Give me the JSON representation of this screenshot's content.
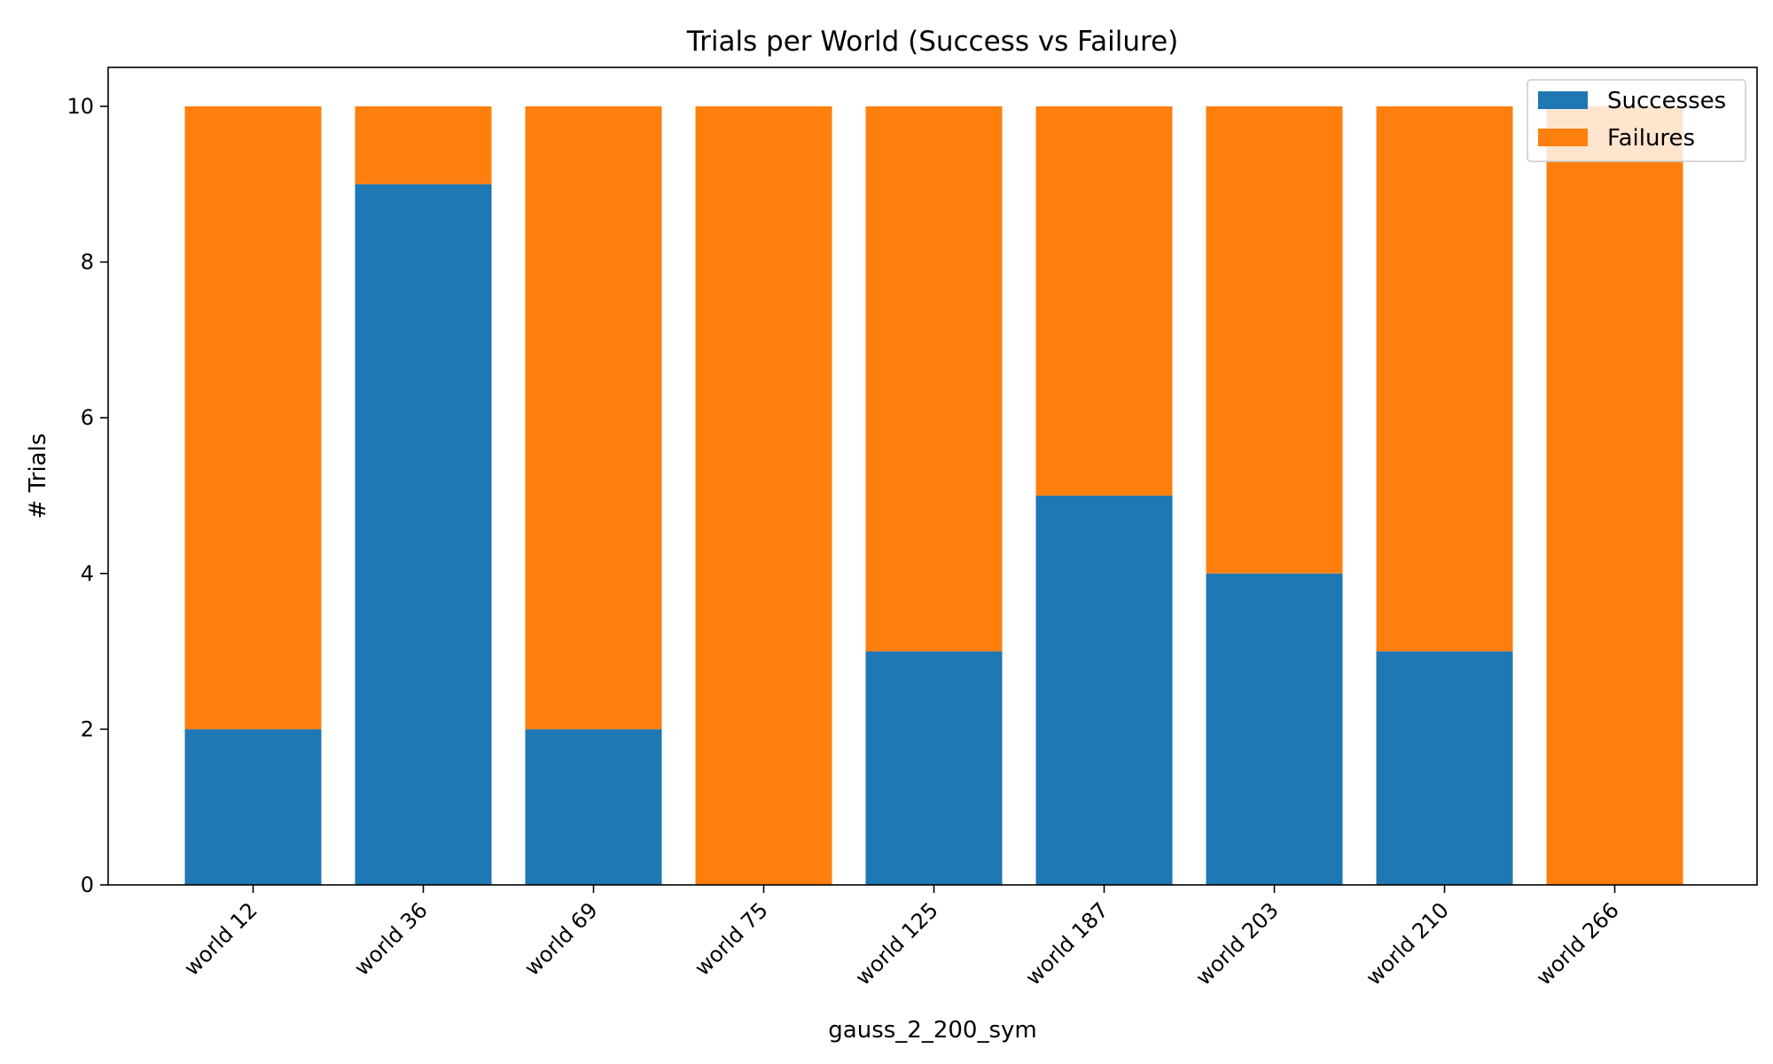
{
  "chart_data": {
    "type": "bar",
    "stacked": true,
    "title": "Trials per World (Success vs Failure)",
    "xlabel": "gauss_2_200_sym",
    "ylabel": "# Trials",
    "ylim": [
      0,
      10.5
    ],
    "yticks": [
      0,
      2,
      4,
      6,
      8,
      10
    ],
    "categories": [
      "world 12",
      "world 36",
      "world 69",
      "world 75",
      "world 125",
      "world 187",
      "world 203",
      "world 210",
      "world 266"
    ],
    "series": [
      {
        "name": "Successes",
        "color": "#1f77b4",
        "values": [
          2,
          9,
          2,
          0,
          3,
          5,
          4,
          3,
          0
        ]
      },
      {
        "name": "Failures",
        "color": "#ff7f0e",
        "values": [
          8,
          1,
          8,
          10,
          7,
          5,
          6,
          7,
          10
        ]
      }
    ],
    "legend_position": "top-right",
    "grid": false
  }
}
